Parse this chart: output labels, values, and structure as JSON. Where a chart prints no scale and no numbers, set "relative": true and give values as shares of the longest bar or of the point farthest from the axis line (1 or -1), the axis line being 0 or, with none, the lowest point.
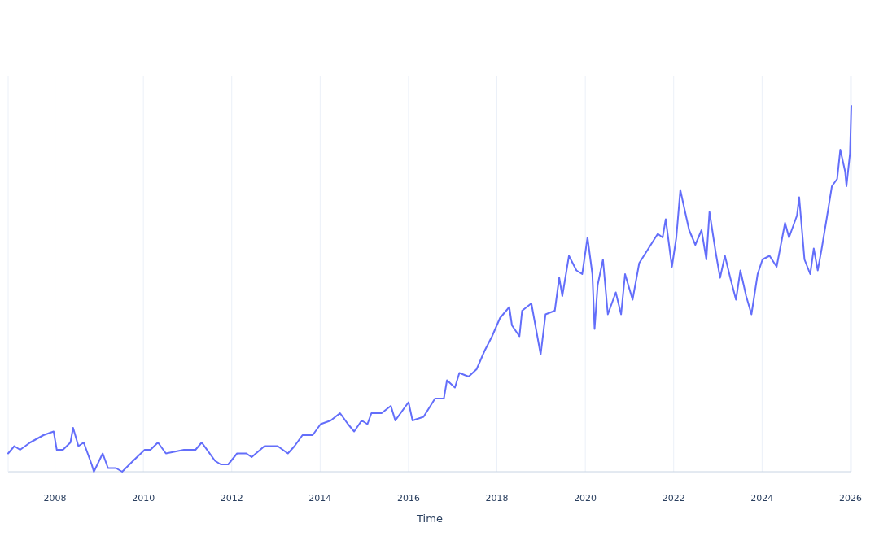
{
  "chart_data": {
    "type": "line",
    "xlabel": "Time",
    "relative": true,
    "grid": "x",
    "xlim": [
      2006.94,
      2026.02
    ],
    "xticks": [
      2008,
      2010,
      2012,
      2014,
      2016,
      2018,
      2020,
      2022,
      2024,
      2026
    ],
    "series": [
      {
        "color": "#636efa",
        "x": [
          2006.94,
          2007.08,
          2007.21,
          2007.44,
          2007.74,
          2007.97,
          2008.04,
          2008.18,
          2008.35,
          2008.41,
          2008.53,
          2008.65,
          2008.83,
          2008.88,
          2009.08,
          2009.2,
          2009.38,
          2009.52,
          2009.77,
          2010.03,
          2010.16,
          2010.33,
          2010.51,
          2010.92,
          2011.18,
          2011.32,
          2011.62,
          2011.75,
          2011.92,
          2012.12,
          2012.33,
          2012.45,
          2012.74,
          2013.04,
          2013.27,
          2013.42,
          2013.6,
          2013.83,
          2014.01,
          2014.24,
          2014.45,
          2014.63,
          2014.77,
          2014.94,
          2015.07,
          2015.16,
          2015.39,
          2015.6,
          2015.7,
          2016.0,
          2016.09,
          2016.34,
          2016.6,
          2016.71,
          2016.8,
          2016.87,
          2017.05,
          2017.15,
          2017.36,
          2017.54,
          2017.72,
          2017.89,
          2018.07,
          2018.28,
          2018.34,
          2018.51,
          2018.57,
          2018.78,
          2018.87,
          2018.99,
          2019.1,
          2019.31,
          2019.41,
          2019.48,
          2019.63,
          2019.8,
          2019.93,
          2020.05,
          2020.16,
          2020.21,
          2020.28,
          2020.4,
          2020.51,
          2020.69,
          2020.81,
          2020.9,
          2021.07,
          2021.22,
          2021.43,
          2021.64,
          2021.75,
          2021.82,
          2021.96,
          2022.06,
          2022.15,
          2022.24,
          2022.35,
          2022.49,
          2022.63,
          2022.74,
          2022.81,
          2022.95,
          2023.05,
          2023.16,
          2023.28,
          2023.41,
          2023.51,
          2023.64,
          2023.76,
          2023.9,
          2024.01,
          2024.17,
          2024.33,
          2024.52,
          2024.61,
          2024.79,
          2024.84,
          2024.96,
          2025.09,
          2025.17,
          2025.26,
          2025.35,
          2025.46,
          2025.58,
          2025.7,
          2025.77,
          2025.88,
          2025.91,
          2025.99,
          2026.02
        ],
        "values": [
          0.05,
          0.07,
          0.06,
          0.08,
          0.1,
          0.11,
          0.06,
          0.06,
          0.08,
          0.12,
          0.07,
          0.08,
          0.02,
          0.0,
          0.05,
          0.01,
          0.01,
          0.0,
          0.03,
          0.06,
          0.06,
          0.08,
          0.05,
          0.06,
          0.06,
          0.08,
          0.03,
          0.02,
          0.02,
          0.05,
          0.05,
          0.04,
          0.07,
          0.07,
          0.05,
          0.07,
          0.1,
          0.1,
          0.13,
          0.14,
          0.16,
          0.13,
          0.11,
          0.14,
          0.13,
          0.16,
          0.16,
          0.18,
          0.14,
          0.19,
          0.14,
          0.15,
          0.2,
          0.2,
          0.2,
          0.25,
          0.23,
          0.27,
          0.26,
          0.28,
          0.33,
          0.37,
          0.42,
          0.45,
          0.4,
          0.37,
          0.44,
          0.46,
          0.4,
          0.32,
          0.43,
          0.44,
          0.53,
          0.48,
          0.59,
          0.55,
          0.54,
          0.64,
          0.54,
          0.39,
          0.51,
          0.58,
          0.43,
          0.49,
          0.43,
          0.54,
          0.47,
          0.57,
          0.61,
          0.65,
          0.64,
          0.69,
          0.56,
          0.64,
          0.77,
          0.72,
          0.66,
          0.62,
          0.66,
          0.58,
          0.71,
          0.6,
          0.53,
          0.59,
          0.53,
          0.47,
          0.55,
          0.48,
          0.43,
          0.54,
          0.58,
          0.59,
          0.56,
          0.68,
          0.64,
          0.7,
          0.75,
          0.58,
          0.54,
          0.61,
          0.55,
          0.61,
          0.69,
          0.78,
          0.8,
          0.88,
          0.82,
          0.78,
          0.87,
          1.0
        ]
      }
    ]
  }
}
